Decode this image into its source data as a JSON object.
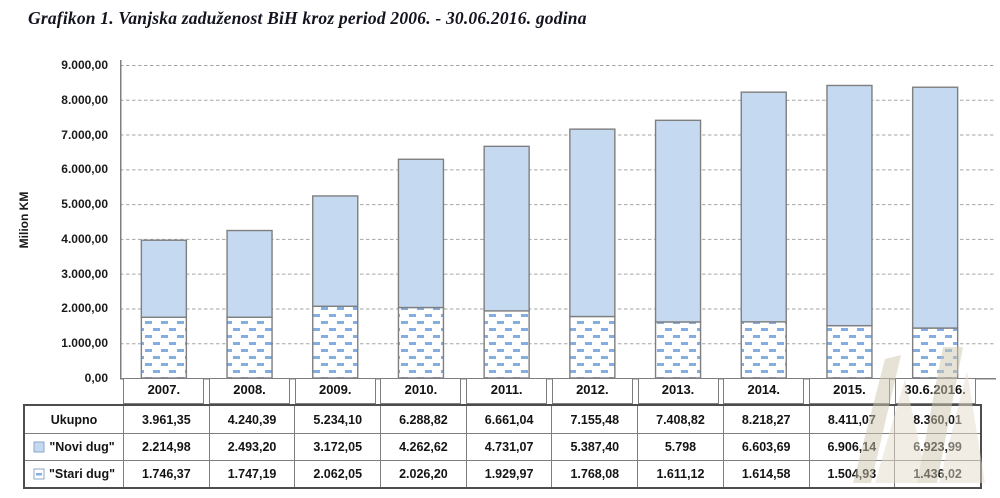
{
  "title": "Grafikon 1. Vanjska zaduženost BiH  kroz period 2006. - 30.06.2016. godina",
  "chart_data": {
    "type": "bar",
    "stacked": true,
    "title": "Grafikon 1. Vanjska zaduženost BiH kroz period 2006. - 30.06.2016. godina",
    "ylabel": "Milion KM",
    "ylim": [
      0,
      9000
    ],
    "ytick_interval": 1000,
    "y_tick_labels": [
      "9.000,00",
      "8.000,00",
      "7.000,00",
      "6.000,00",
      "5.000,00",
      "4.000,00",
      "3.000,00",
      "2.000,00",
      "1.000,00",
      "0,00"
    ],
    "grid": "horizontal-dashed",
    "legend_position": "attached-data-table-left",
    "categories": [
      "2007.",
      "2008.",
      "2009.",
      "2010.",
      "2011.",
      "2012.",
      "2013.",
      "2014.",
      "2015.",
      "30.6.2016."
    ],
    "series": [
      {
        "name": "\"Novi dug\"",
        "stack_position": "top",
        "fill_style": "solid",
        "values": [
          2214.98,
          2493.2,
          3172.05,
          4262.62,
          4731.07,
          5387.4,
          5797.7,
          6603.69,
          6906.14,
          6923.99
        ]
      },
      {
        "name": "\"Stari dug\"",
        "stack_position": "bottom",
        "fill_style": "dashed-pattern",
        "values": [
          1746.37,
          1747.19,
          2062.05,
          2026.2,
          1929.97,
          1768.08,
          1611.12,
          1614.58,
          1504.93,
          1436.02
        ]
      }
    ],
    "totals": {
      "name": "Ukupno",
      "values": [
        3961.35,
        4240.39,
        5234.1,
        6288.82,
        6661.04,
        7155.48,
        7408.82,
        8218.27,
        8411.07,
        8360.01
      ]
    }
  },
  "table": {
    "rows": [
      {
        "label": "Ukupno",
        "legend": "none",
        "values": [
          "3.961,35",
          "4.240,39",
          "5.234,10",
          "6.288,82",
          "6.661,04",
          "7.155,48",
          "7.408,82",
          "8.218,27",
          "8.411,07",
          "8.360,01"
        ]
      },
      {
        "label": "\"Novi dug\"",
        "legend": "solid-swatch",
        "values": [
          "2.214,98",
          "2.493,20",
          "3.172,05",
          "4.262,62",
          "4.731,07",
          "5.387,40",
          "5.798",
          "6.603,69",
          "6.906,14",
          "6.923,99"
        ]
      },
      {
        "label": "\"Stari dug\"",
        "legend": "pattern-swatch",
        "values": [
          "1.746,37",
          "1.747,19",
          "2.062,05",
          "2.026,20",
          "1.929,97",
          "1.768,08",
          "1.611,12",
          "1.614,58",
          "1.504,93",
          "1.436,02"
        ]
      }
    ]
  },
  "colors": {
    "bar_solid_fill": "#c5d9f1",
    "bar_border": "#7f7f7f",
    "pattern_dash": "#85ade1",
    "swatch_border": "#8aa6c6",
    "gridline": "#a6a6a6",
    "axis": "#7f7f7f",
    "table_border_outer": "#4d4d4d",
    "table_border_inner": "#7e7e7e",
    "text": "#1a1a1a",
    "watermark": "#cfc6af",
    "watermark_light": "#e4ddcc"
  }
}
